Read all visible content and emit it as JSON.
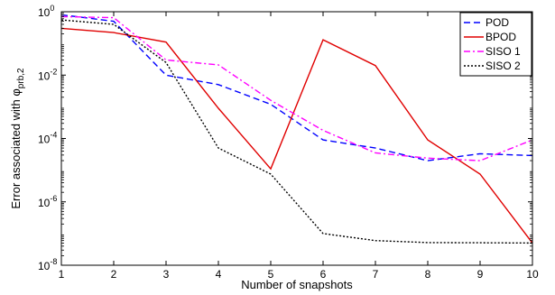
{
  "chart_data": {
    "type": "line",
    "xlabel": "Number of snapshots",
    "ylabel_main": "Error associated with φ",
    "ylabel_subscript": "prb,2",
    "xlim": [
      1,
      10
    ],
    "ylim": [
      1e-08,
      1
    ],
    "yscale": "log",
    "x_ticks": [
      "1",
      "2",
      "3",
      "4",
      "5",
      "6",
      "7",
      "8",
      "9",
      "10"
    ],
    "y_ticks": [
      {
        "base": "10",
        "exp": "0",
        "value": 1
      },
      {
        "base": "10",
        "exp": "-2",
        "value": 0.01
      },
      {
        "base": "10",
        "exp": "-4",
        "value": 0.0001
      },
      {
        "base": "10",
        "exp": "-6",
        "value": 1e-06
      },
      {
        "base": "10",
        "exp": "-8",
        "value": 1e-08
      }
    ],
    "grid": false,
    "legend_position": "top-right",
    "x": [
      1,
      2,
      3,
      4,
      5,
      6,
      7,
      8,
      9,
      10
    ],
    "series": [
      {
        "name": "POD",
        "color": "#0000ff",
        "dash": "7,4",
        "values": [
          0.8,
          0.5,
          0.01,
          0.005,
          0.0012,
          9e-05,
          5e-05,
          2e-05,
          3.3e-05,
          2.9e-05
        ]
      },
      {
        "name": "BPOD",
        "color": "#e00000",
        "dash": "",
        "values": [
          0.3,
          0.22,
          0.11,
          0.0009,
          1.1e-05,
          0.13,
          0.02,
          9e-05,
          7.5e-06,
          5e-08
        ]
      },
      {
        "name": "SISO 1",
        "color": "#ff00ff",
        "dash": "7,3,2,3",
        "values": [
          0.7,
          0.65,
          0.03,
          0.021,
          0.0016,
          0.00018,
          3.5e-05,
          2.4e-05,
          2e-05,
          9e-05
        ]
      },
      {
        "name": "SISO 2",
        "color": "#000000",
        "dash": "2,2",
        "values": [
          0.55,
          0.4,
          0.025,
          5e-05,
          7.5e-06,
          1e-07,
          6e-08,
          5.2e-08,
          5.1e-08,
          5e-08
        ]
      }
    ]
  }
}
